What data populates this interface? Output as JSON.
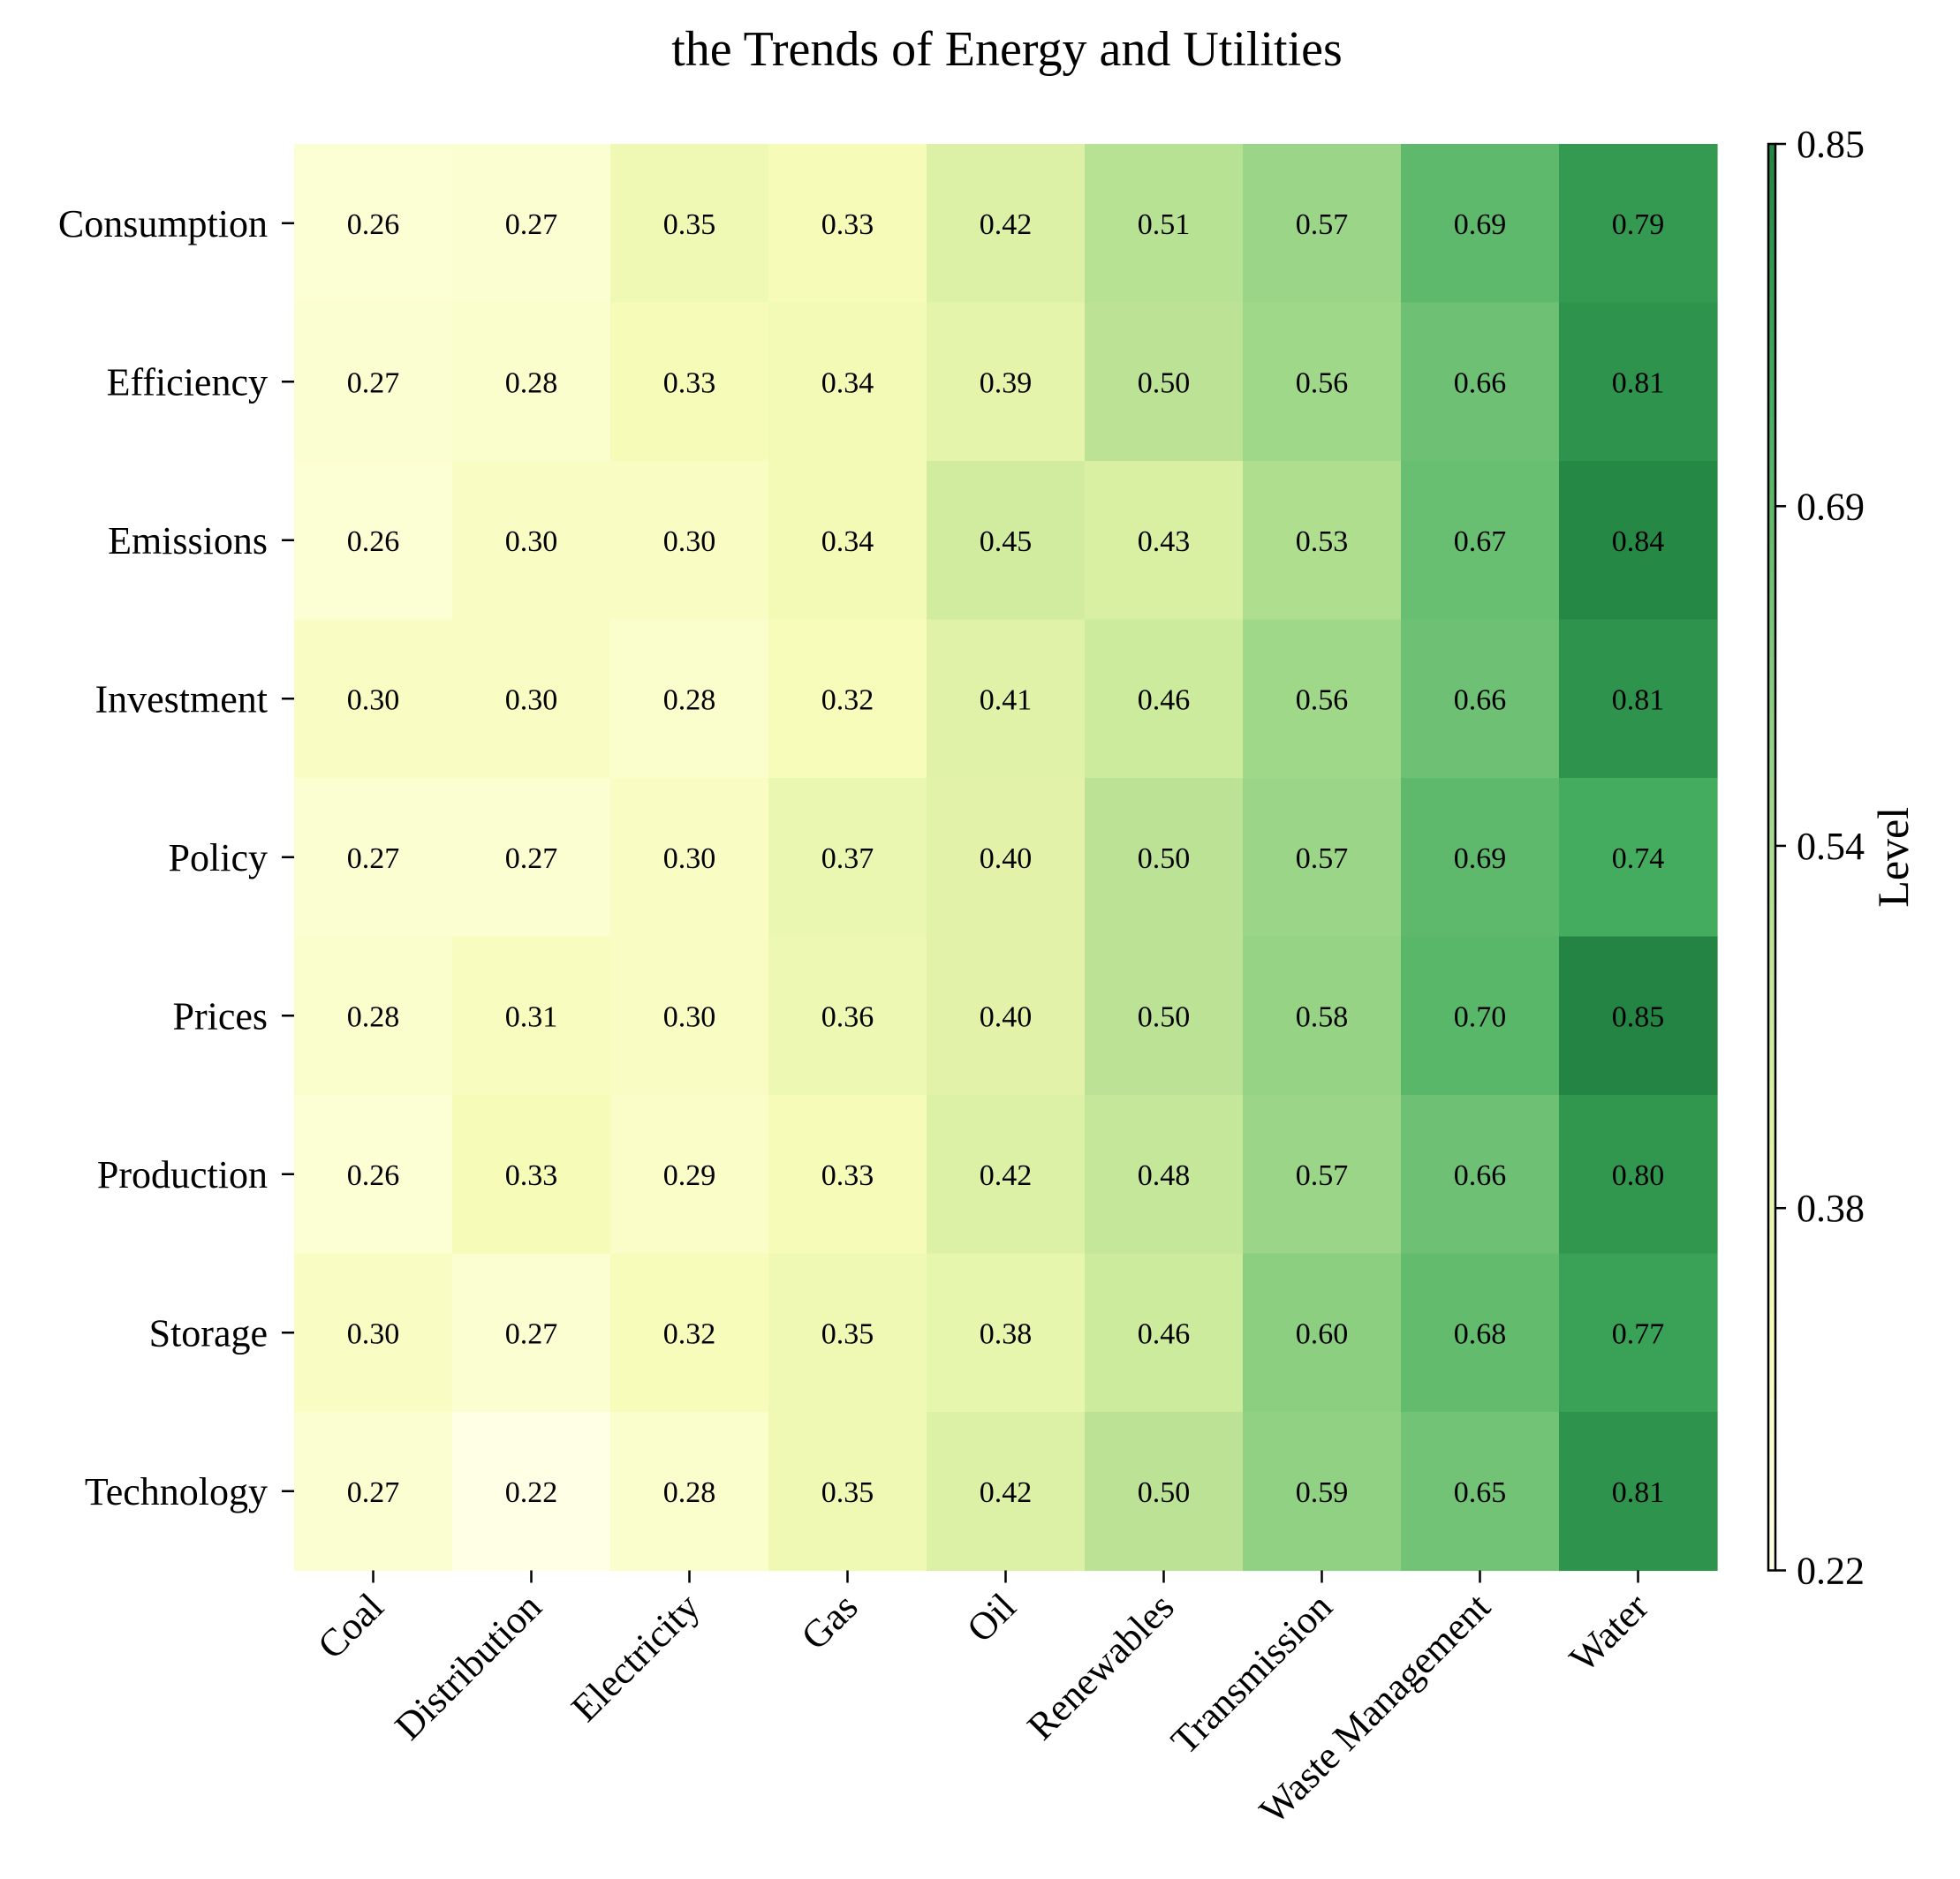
{
  "chart_data": {
    "type": "heatmap",
    "title": "the Trends of Energy and Utilities",
    "rows": [
      "Consumption",
      "Efficiency",
      "Emissions",
      "Investment",
      "Policy",
      "Prices",
      "Production",
      "Storage",
      "Technology"
    ],
    "columns": [
      "Coal",
      "Distribution",
      "Electricity",
      "Gas",
      "Oil",
      "Renewables",
      "Transmission",
      "Waste Management",
      "Water"
    ],
    "values": [
      [
        0.26,
        0.27,
        0.35,
        0.33,
        0.42,
        0.51,
        0.57,
        0.69,
        0.79
      ],
      [
        0.27,
        0.28,
        0.33,
        0.34,
        0.39,
        0.5,
        0.56,
        0.66,
        0.81
      ],
      [
        0.26,
        0.3,
        0.3,
        0.34,
        0.45,
        0.43,
        0.53,
        0.67,
        0.84
      ],
      [
        0.3,
        0.3,
        0.28,
        0.32,
        0.41,
        0.46,
        0.56,
        0.66,
        0.81
      ],
      [
        0.27,
        0.27,
        0.3,
        0.37,
        0.4,
        0.5,
        0.57,
        0.69,
        0.74
      ],
      [
        0.28,
        0.31,
        0.3,
        0.36,
        0.4,
        0.5,
        0.58,
        0.7,
        0.85
      ],
      [
        0.26,
        0.33,
        0.29,
        0.33,
        0.42,
        0.48,
        0.57,
        0.66,
        0.8
      ],
      [
        0.3,
        0.27,
        0.32,
        0.35,
        0.38,
        0.46,
        0.6,
        0.68,
        0.77
      ],
      [
        0.27,
        0.22,
        0.28,
        0.35,
        0.42,
        0.5,
        0.59,
        0.65,
        0.81
      ]
    ],
    "value_format": "0.00",
    "colorbar": {
      "label": "Level",
      "range": [
        0.22,
        0.85
      ],
      "ticks": [
        "0.22",
        "0.38",
        "0.54",
        "0.69",
        "0.85"
      ],
      "colormap": [
        "#ffffe5",
        "#f7fcb9",
        "#d9f0a3",
        "#addd8e",
        "#78c679",
        "#41ab5d",
        "#238443"
      ]
    },
    "grid": false,
    "legend": "colorbar-right"
  }
}
